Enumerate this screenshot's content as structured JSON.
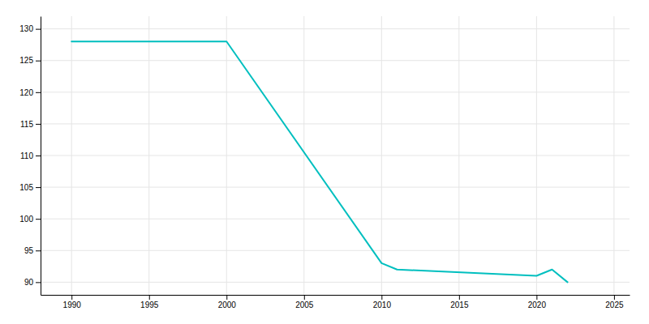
{
  "chart_data": {
    "type": "line",
    "x": [
      1990,
      2000,
      2010,
      2011,
      2020,
      2021,
      2022
    ],
    "values": [
      128,
      128,
      93,
      92,
      91,
      92,
      90
    ],
    "color": "#00BFBF",
    "xlim": [
      1988,
      2026
    ],
    "ylim": [
      88,
      132
    ],
    "xticks": [
      1990,
      1995,
      2000,
      2005,
      2010,
      2015,
      2020,
      2025
    ],
    "yticks": [
      90,
      95,
      100,
      105,
      110,
      115,
      120,
      125,
      130
    ],
    "grid": true
  }
}
